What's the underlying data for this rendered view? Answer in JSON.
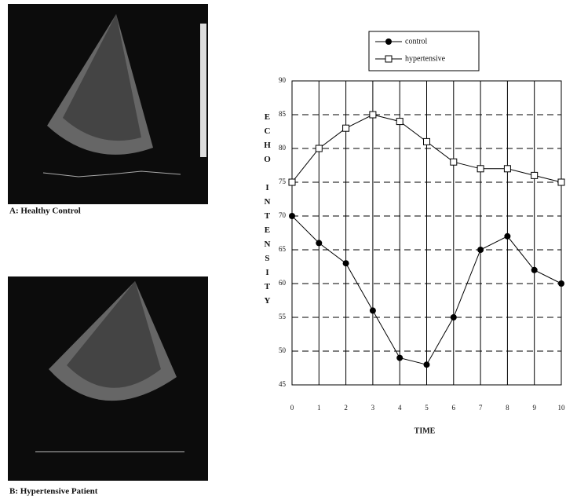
{
  "panels": [
    {
      "caption": "A: Healthy Control"
    },
    {
      "caption": "B: Hypertensive Patient"
    }
  ],
  "chart_data": {
    "type": "line",
    "x": [
      0,
      1,
      2,
      3,
      4,
      5,
      6,
      7,
      8,
      9,
      10
    ],
    "series": [
      {
        "name": "control",
        "color": "#000000",
        "marker": "filled-circle",
        "values": [
          70,
          66,
          63,
          56,
          49,
          48,
          55,
          65,
          67,
          62,
          60
        ]
      },
      {
        "name": "hypertensive",
        "color": "#000000",
        "marker": "hollow-square",
        "values": [
          75,
          80,
          83,
          85,
          84,
          81,
          78,
          77,
          77,
          76,
          75
        ]
      }
    ],
    "xlim": [
      0,
      10
    ],
    "xticks": [
      0,
      1,
      2,
      3,
      4,
      5,
      6,
      7,
      8,
      9,
      10
    ],
    "ylim": [
      45,
      90
    ],
    "yticks": [
      45,
      50,
      55,
      60,
      65,
      70,
      75,
      80,
      85,
      90
    ],
    "xlabel": "TIME",
    "ylabel": "ECHO INTENSITY",
    "grid": true,
    "legend": "top"
  }
}
